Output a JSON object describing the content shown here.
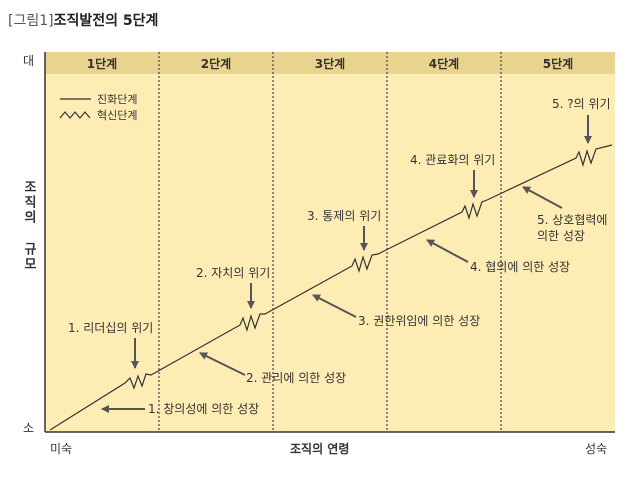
{
  "title": {
    "prefix": "[그림1]",
    "main": "조직발전의 5단계"
  },
  "axis": {
    "y_top": "대",
    "y_bottom": "소",
    "y_title": "조직의 규모",
    "x_left": "미숙",
    "x_title": "조직의 연령",
    "x_right": "성숙"
  },
  "stages": [
    "1단계",
    "2단계",
    "3단계",
    "4단계",
    "5단계"
  ],
  "legend": {
    "evolution": "진화단계",
    "revolution": "혁신단계"
  },
  "crises": [
    "1. 리더십의 위기",
    "2. 자치의 위기",
    "3. 통제의 위기",
    "4. 관료화의 위기",
    "5. ?의 위기"
  ],
  "growths": [
    "1. 창의성에 의한 성장",
    "2. 관리에 의한 성장",
    "3. 권한위임에 의한 성장",
    "4. 협의에 의한 성장",
    "5. 상호협력에",
    "의한 성장"
  ],
  "colors": {
    "stage_fill": "#fdedb5",
    "header_fill": "#e9d48f",
    "line": "#333333"
  }
}
